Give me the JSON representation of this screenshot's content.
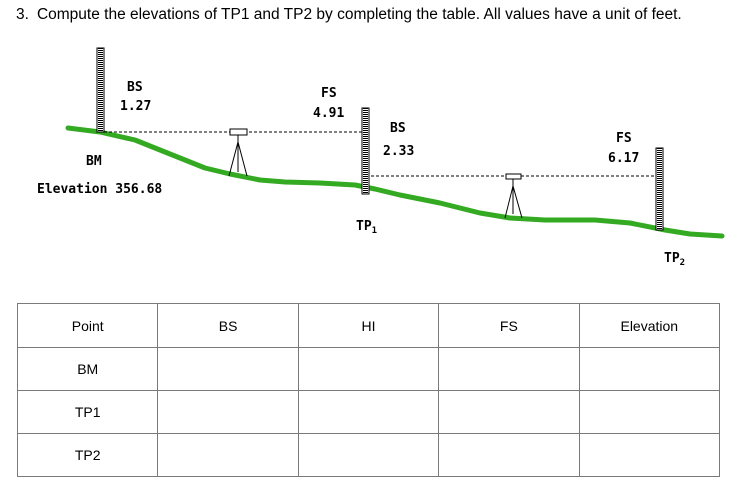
{
  "question": {
    "number": "3.",
    "text": "Compute the elevations of TP1 and TP2 by completing the table. All values have a unit of feet."
  },
  "diagram": {
    "bs1": {
      "label": "BS",
      "value": "1.27"
    },
    "fs1": {
      "label": "FS",
      "value": "4.91"
    },
    "bs2": {
      "label": "BS",
      "value": "2.33"
    },
    "fs2": {
      "label": "FS",
      "value": "6.17"
    },
    "bm_label": "BM",
    "elevation_label": "Elevation 356.68",
    "tp1_label": "TP",
    "tp1_sub": "1",
    "tp2_label": "TP",
    "tp2_sub": "2"
  },
  "table": {
    "headers": [
      "Point",
      "BS",
      "HI",
      "FS",
      "Elevation"
    ],
    "rows": [
      {
        "point": "BM"
      },
      {
        "point": "TP1"
      },
      {
        "point": "TP2"
      }
    ]
  },
  "colors": {
    "ground": "#33aa22",
    "line": "#000000"
  }
}
